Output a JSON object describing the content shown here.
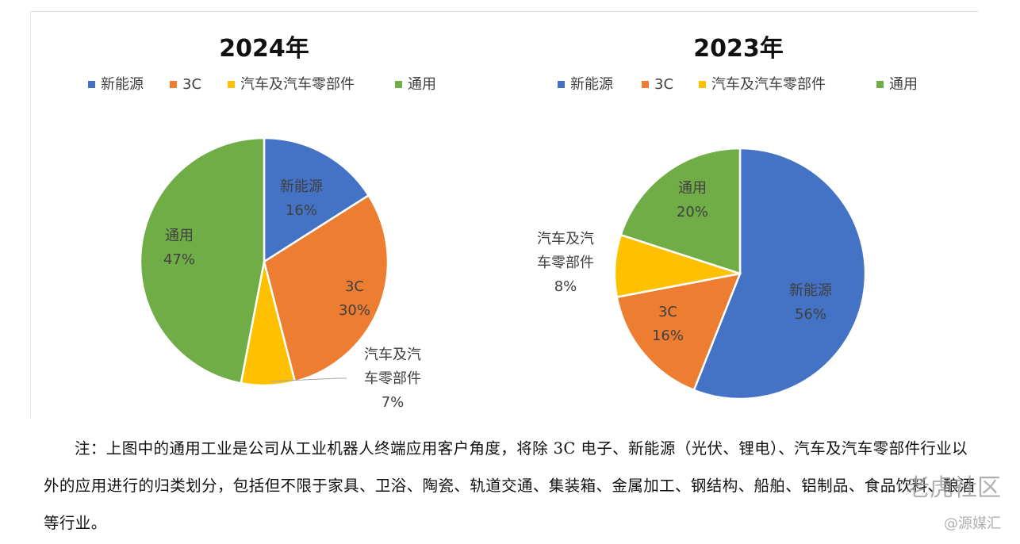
{
  "chart_data": [
    {
      "type": "pie",
      "title": "2024年",
      "legend": [
        "新能源",
        "3C",
        "汽车及汽车零部件",
        "通用"
      ],
      "legend_position": "top",
      "slices": [
        {
          "name": "新能源",
          "label": [
            "新能源"
          ],
          "value": 16,
          "pct": "16%",
          "color": "#4472C4"
        },
        {
          "name": "3C",
          "label": [
            "3C"
          ],
          "value": 30,
          "pct": "30%",
          "color": "#ED7D31"
        },
        {
          "name": "汽车及汽车零部件",
          "label": [
            "汽车及汽",
            "车零部件"
          ],
          "value": 7,
          "pct": "7%",
          "color": "#FFC000"
        },
        {
          "name": "通用",
          "label": [
            "通用"
          ],
          "value": 47,
          "pct": "47%",
          "color": "#70AD47"
        }
      ]
    },
    {
      "type": "pie",
      "title": "2023年",
      "legend": [
        "新能源",
        "3C",
        "汽车及汽车零部件",
        "通用"
      ],
      "legend_position": "top",
      "slices": [
        {
          "name": "新能源",
          "label": [
            "新能源"
          ],
          "value": 56,
          "pct": "56%",
          "color": "#4472C4"
        },
        {
          "name": "3C",
          "label": [
            "3C"
          ],
          "value": 16,
          "pct": "16%",
          "color": "#ED7D31"
        },
        {
          "name": "汽车及汽车零部件",
          "label": [
            "汽车及汽",
            "车零部件"
          ],
          "value": 8,
          "pct": "8%",
          "color": "#FFC000"
        },
        {
          "name": "通用",
          "label": [
            "通用"
          ],
          "value": 20,
          "pct": "20%",
          "color": "#70AD47"
        }
      ]
    }
  ],
  "note": "注：上图中的通用工业是公司从工业机器人终端应用客户角度，将除 3C 电子、新能源（光伏、锂电）、汽车及汽车零部件行业以外的应用进行的归类划分，包括但不限于家具、卫浴、陶瓷、轨道交通、集装箱、金属加工、钢结构、船舶、铝制品、食品饮料、酿酒等行业。",
  "watermarks": [
    "老虎社区",
    "@源媒汇"
  ]
}
